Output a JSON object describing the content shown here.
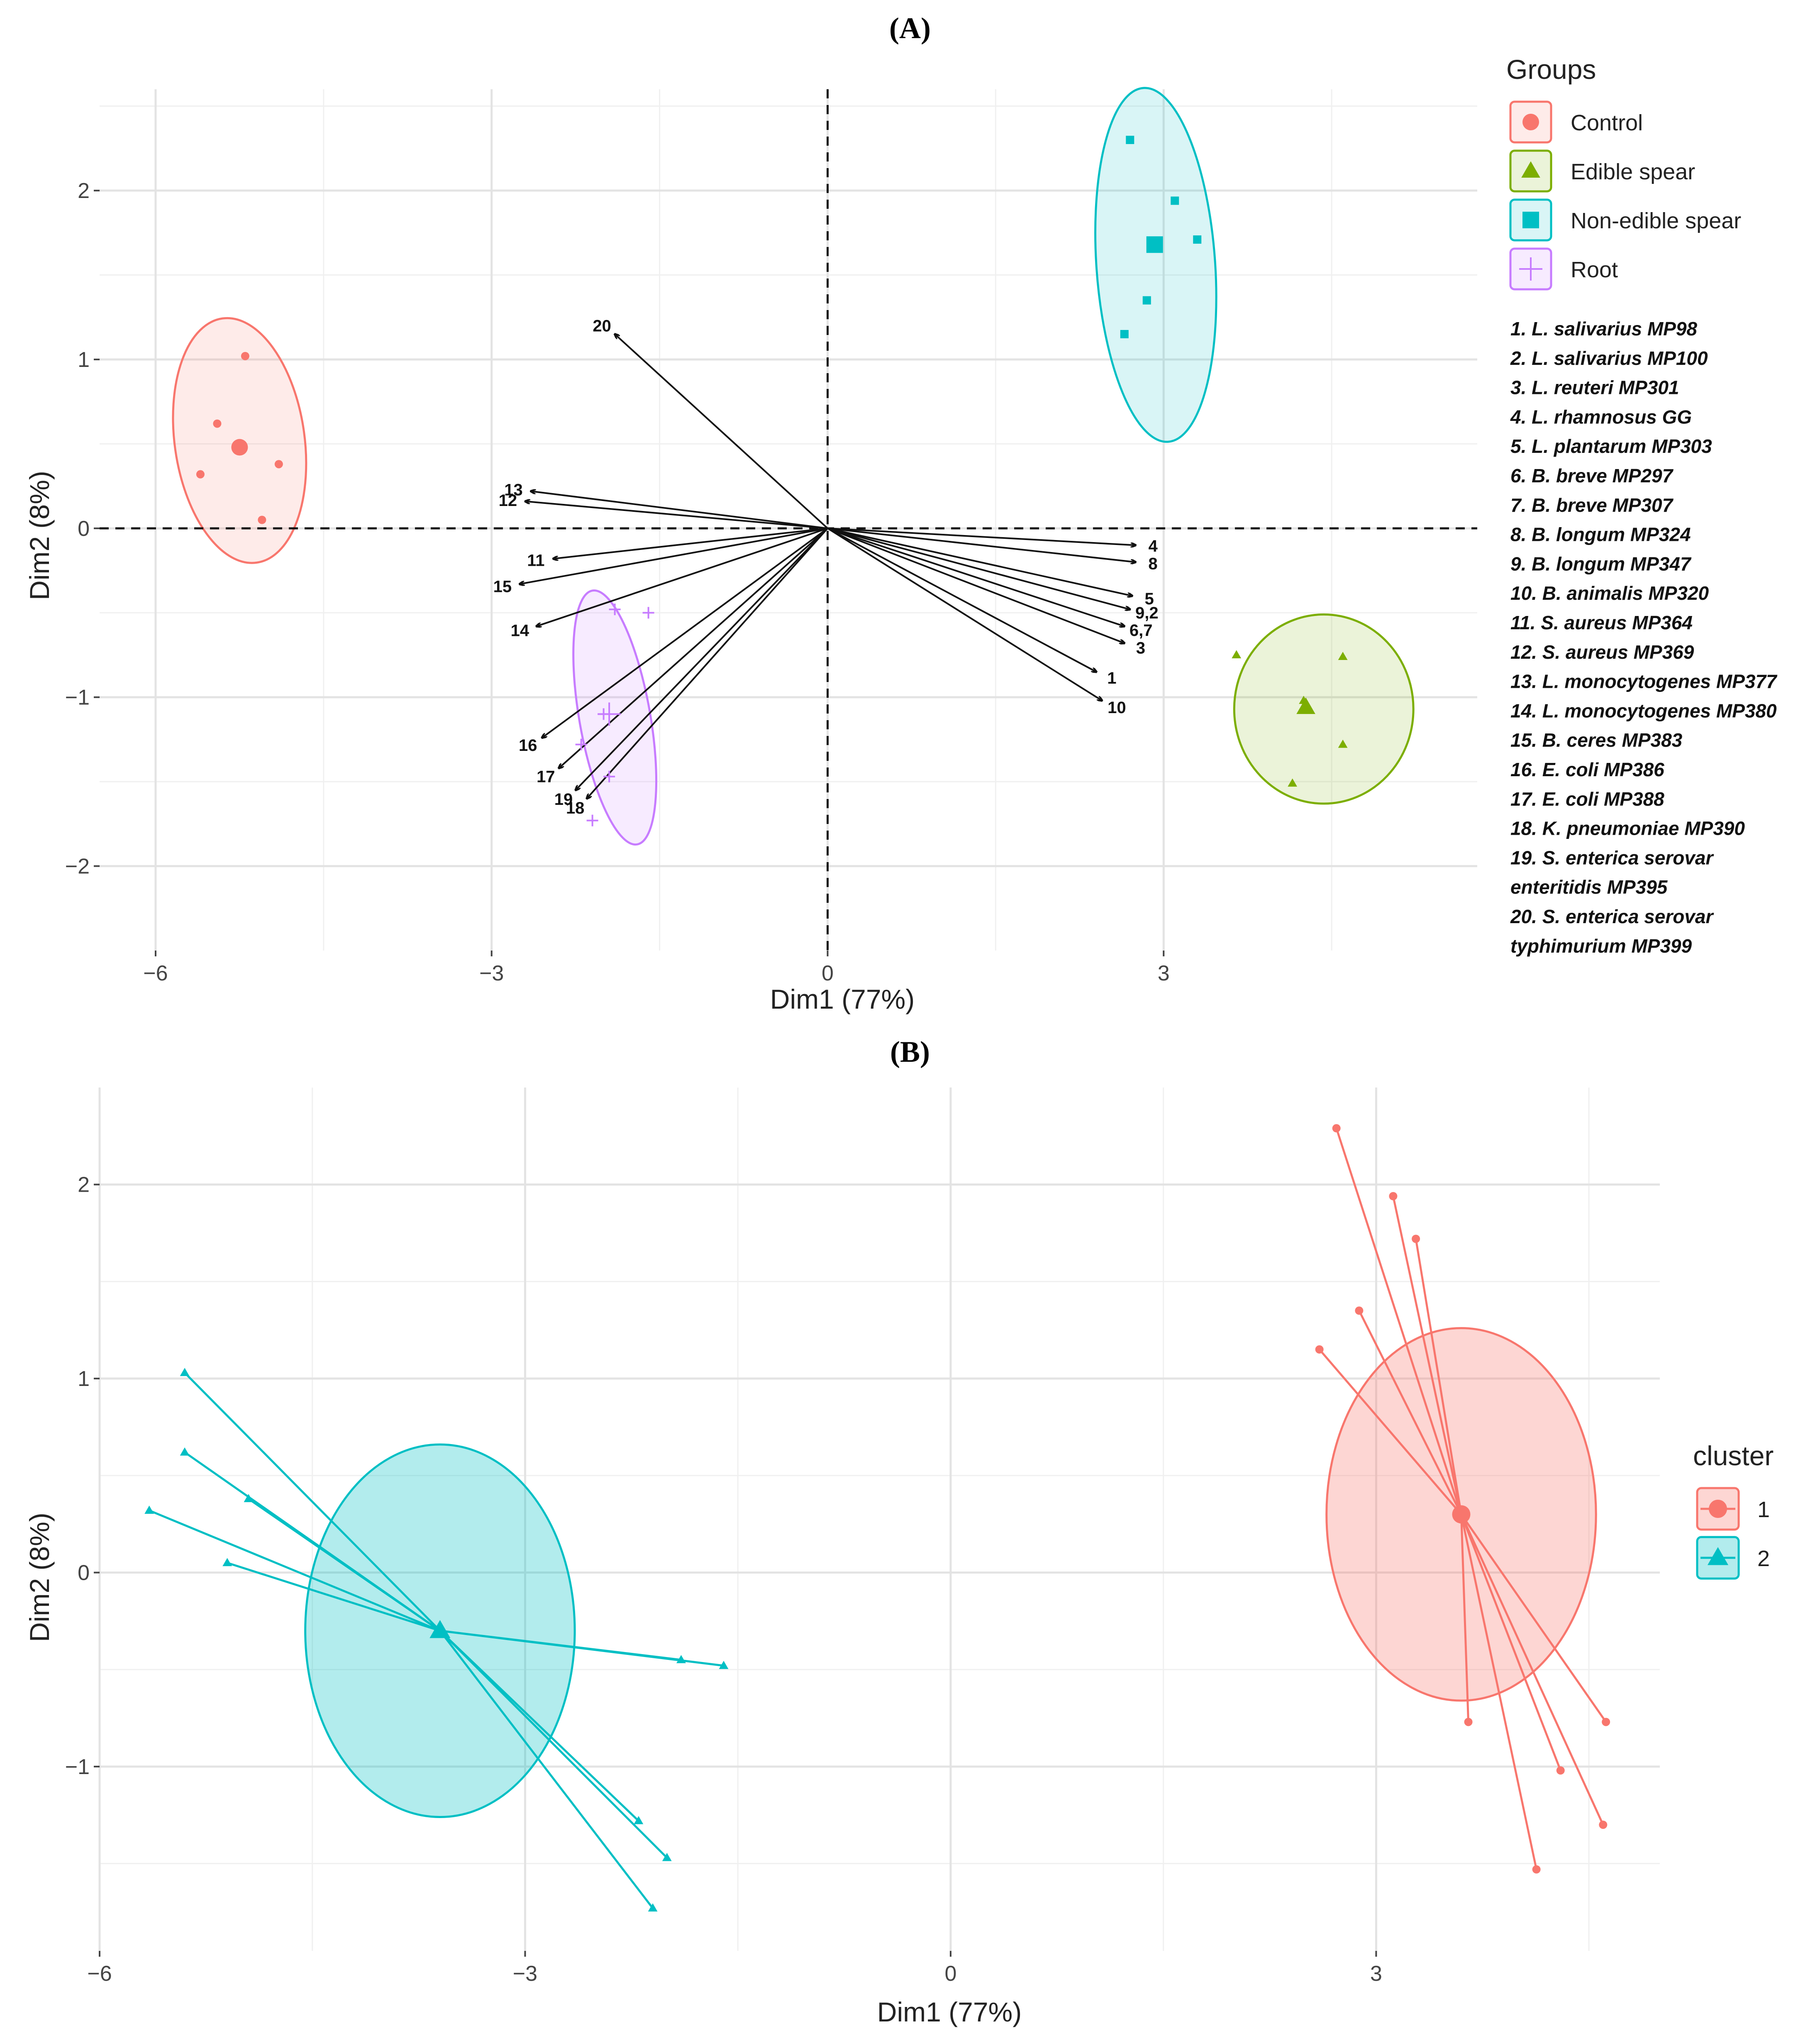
{
  "chart_data": [
    {
      "panel": "(A)",
      "type": "scatter",
      "subtype": "pca-biplot",
      "xlabel": "Dim1 (77%)",
      "ylabel": "Dim2 (8%)",
      "xlim": [
        -6.5,
        5.8
      ],
      "ylim": [
        -2.5,
        2.6
      ],
      "xticks": [
        -6,
        -3,
        0,
        3
      ],
      "yticks": [
        -2,
        -1,
        0,
        1,
        2
      ],
      "x_tick_labels": [
        "−6",
        "−3",
        "0",
        "3"
      ],
      "y_tick_labels": [
        "−2",
        "−1",
        "0",
        "1",
        "2"
      ],
      "legend": {
        "title": "Groups",
        "entries": [
          {
            "label": "Control",
            "color": "#F8766D",
            "shape": "circle"
          },
          {
            "label": "Edible spear",
            "color": "#7CAE00",
            "shape": "triangle"
          },
          {
            "label": "Non-edible spear",
            "color": "#00BFC4",
            "shape": "square"
          },
          {
            "label": "Root",
            "color": "#C77CFF",
            "shape": "plus"
          }
        ]
      },
      "series": [
        {
          "name": "Control",
          "color": "#F8766D",
          "shape": "circle",
          "points": [
            [
              -5.2,
              1.02
            ],
            [
              -5.45,
              0.62
            ],
            [
              -5.6,
              0.32
            ],
            [
              -4.9,
              0.38
            ],
            [
              -5.05,
              0.05
            ]
          ],
          "centroid": [
            -5.25,
            0.48
          ],
          "ellipse": {
            "cx": -5.25,
            "cy": 0.52,
            "rx": 0.58,
            "ry": 0.73,
            "angle_deg": 8
          }
        },
        {
          "name": "Edible spear",
          "color": "#7CAE00",
          "shape": "triangle",
          "points": [
            [
              3.65,
              -0.75
            ],
            [
              4.6,
              -0.76
            ],
            [
              4.25,
              -1.02
            ],
            [
              4.6,
              -1.28
            ],
            [
              4.15,
              -1.51
            ]
          ],
          "centroid": [
            4.27,
            -1.06
          ],
          "ellipse": {
            "cx": 4.43,
            "cy": -1.07,
            "rx": 0.8,
            "ry": 0.56,
            "angle_deg": 0
          }
        },
        {
          "name": "Non-edible spear",
          "color": "#00BFC4",
          "shape": "square",
          "points": [
            [
              2.7,
              2.3
            ],
            [
              3.1,
              1.94
            ],
            [
              3.3,
              1.71
            ],
            [
              2.85,
              1.35
            ],
            [
              2.65,
              1.15
            ]
          ],
          "centroid": [
            2.92,
            1.68
          ],
          "ellipse": {
            "cx": 2.93,
            "cy": 1.56,
            "rx": 0.53,
            "ry": 1.05,
            "angle_deg": 4
          }
        },
        {
          "name": "Root",
          "color": "#C77CFF",
          "shape": "plus",
          "points": [
            [
              -1.9,
              -0.48
            ],
            [
              -1.6,
              -0.5
            ],
            [
              -2.0,
              -1.1
            ],
            [
              -2.2,
              -1.28
            ],
            [
              -1.95,
              -1.47
            ],
            [
              -2.1,
              -1.73
            ]
          ],
          "centroid": [
            -1.95,
            -1.1
          ],
          "ellipse": {
            "cx": -1.9,
            "cy": -1.12,
            "rx": 1.15,
            "ry": 0.21,
            "angle_deg": -80
          }
        }
      ],
      "vectors": [
        {
          "label": "1",
          "x": 2.4,
          "y": -0.85
        },
        {
          "label": "10",
          "x": 2.45,
          "y": -1.02
        },
        {
          "label": "3",
          "x": 2.65,
          "y": -0.68
        },
        {
          "label": "6,7",
          "x": 2.65,
          "y": -0.58
        },
        {
          "label": "9,2",
          "x": 2.7,
          "y": -0.48
        },
        {
          "label": "5",
          "x": 2.72,
          "y": -0.4
        },
        {
          "label": "8",
          "x": 2.75,
          "y": -0.2
        },
        {
          "label": "4",
          "x": 2.75,
          "y": -0.1
        },
        {
          "label": "20",
          "x": -1.9,
          "y": 1.15
        },
        {
          "label": "13",
          "x": -2.65,
          "y": 0.22
        },
        {
          "label": "12",
          "x": -2.7,
          "y": 0.16
        },
        {
          "label": "11",
          "x": -2.45,
          "y": -0.18
        },
        {
          "label": "15",
          "x": -2.75,
          "y": -0.33
        },
        {
          "label": "14",
          "x": -2.6,
          "y": -0.58
        },
        {
          "label": "16",
          "x": -2.55,
          "y": -1.24
        },
        {
          "label": "17",
          "x": -2.4,
          "y": -1.42
        },
        {
          "label": "19",
          "x": -2.25,
          "y": -1.55
        },
        {
          "label": "18",
          "x": -2.15,
          "y": -1.6
        }
      ],
      "strain_key": [
        "1. L. salivarius MP98",
        "2. L. salivarius MP100",
        "3. L. reuteri MP301",
        "4. L. rhamnosus GG",
        "5. L. plantarum MP303",
        "6. B. breve MP297",
        "7. B. breve MP307",
        "8. B. longum MP324",
        "9. B. longum MP347",
        "10. B. animalis MP320",
        "11. S. aureus MP364",
        "12. S. aureus MP369",
        "13. L. monocytogenes MP377",
        "14. L. monocytogenes MP380",
        "15. B. ceres MP383",
        "16. E. coli MP386",
        "17. E. coli MP388",
        "18. K. pneumoniae MP390",
        "19. S. enterica serovar",
        "enteritidis MP395",
        "20. S. enterica serovar",
        "typhimurium MP399"
      ]
    },
    {
      "panel": "(B)",
      "type": "scatter",
      "subtype": "cluster-plot",
      "xlabel": "Dim1 (77%)",
      "ylabel": "Dim2 (8%)",
      "xlim": [
        -6.0,
        5.0
      ],
      "ylim": [
        -1.95,
        2.5
      ],
      "xticks": [
        -6,
        -3,
        0,
        3
      ],
      "yticks": [
        -1,
        0,
        1,
        2
      ],
      "x_tick_labels": [
        "−6",
        "−3",
        "0",
        "3"
      ],
      "y_tick_labels": [
        "−1",
        "0",
        "1",
        "2"
      ],
      "legend": {
        "title": "cluster",
        "entries": [
          {
            "label": "1",
            "color": "#F8766D",
            "shape": "circle"
          },
          {
            "label": "2",
            "color": "#00BFC4",
            "shape": "triangle"
          }
        ]
      },
      "series": [
        {
          "name": "1",
          "color": "#F8766D",
          "shape": "circle",
          "centroid": [
            3.6,
            0.3
          ],
          "points": [
            [
              2.72,
              2.29
            ],
            [
              3.12,
              1.94
            ],
            [
              3.28,
              1.72
            ],
            [
              2.88,
              1.35
            ],
            [
              2.6,
              1.15
            ],
            [
              3.65,
              -0.77
            ],
            [
              4.3,
              -1.02
            ],
            [
              4.62,
              -0.77
            ],
            [
              4.6,
              -1.3
            ],
            [
              4.13,
              -1.53
            ]
          ],
          "ellipse": {
            "cx": 3.6,
            "cy": 0.3,
            "rx": 0.95,
            "ry": 0.96,
            "angle_deg": 0
          }
        },
        {
          "name": "2",
          "color": "#00BFC4",
          "shape": "triangle",
          "centroid": [
            -3.6,
            -0.3
          ],
          "points": [
            [
              -5.4,
              1.03
            ],
            [
              -5.4,
              0.62
            ],
            [
              -4.95,
              0.38
            ],
            [
              -5.65,
              0.32
            ],
            [
              -5.1,
              0.05
            ],
            [
              -1.9,
              -0.45
            ],
            [
              -1.6,
              -0.48
            ],
            [
              -2.2,
              -1.28
            ],
            [
              -2.0,
              -1.47
            ],
            [
              -2.1,
              -1.73
            ]
          ],
          "ellipse": {
            "cx": -3.6,
            "cy": -0.3,
            "rx": 0.95,
            "ry": 0.96,
            "angle_deg": 0
          }
        }
      ]
    }
  ]
}
